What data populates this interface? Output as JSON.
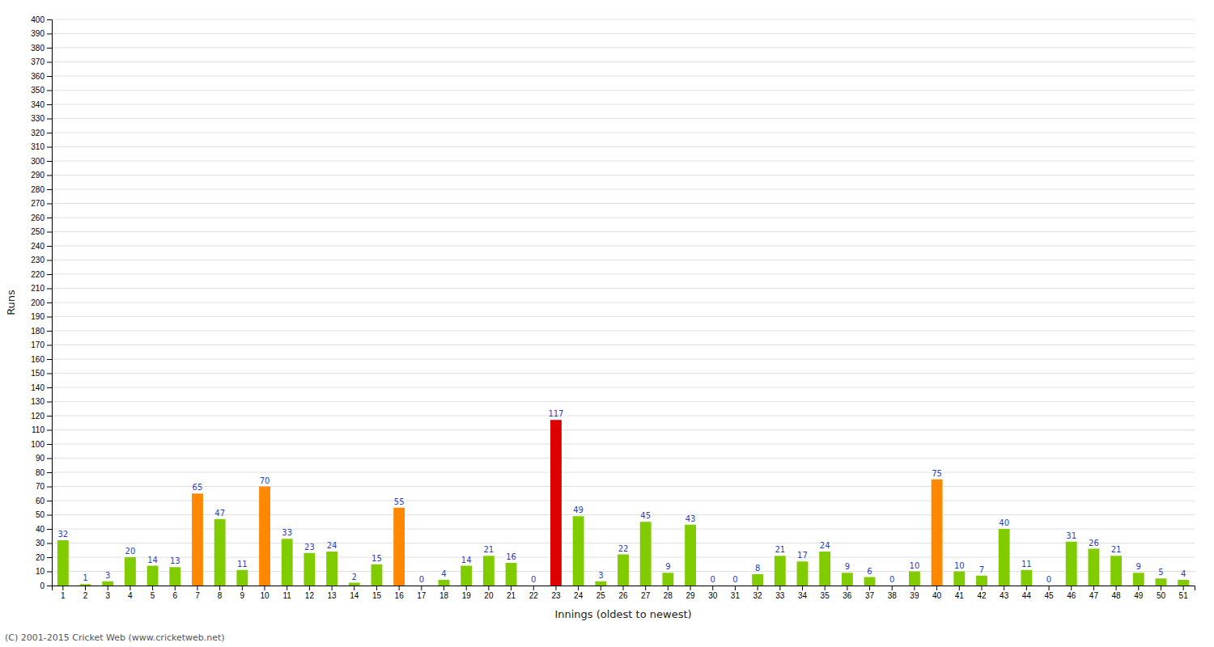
{
  "chart_data": {
    "type": "bar",
    "xlabel": "Innings (oldest to newest)",
    "ylabel": "Runs",
    "categories": [
      "1",
      "2",
      "3",
      "4",
      "5",
      "6",
      "7",
      "8",
      "9",
      "10",
      "11",
      "12",
      "13",
      "14",
      "15",
      "16",
      "17",
      "18",
      "19",
      "20",
      "21",
      "22",
      "23",
      "24",
      "25",
      "26",
      "27",
      "28",
      "29",
      "30",
      "31",
      "32",
      "33",
      "34",
      "35",
      "36",
      "37",
      "38",
      "39",
      "40",
      "41",
      "42",
      "43",
      "44",
      "45",
      "46",
      "47",
      "48",
      "49",
      "50",
      "51"
    ],
    "values": [
      32,
      1,
      3,
      20,
      14,
      13,
      65,
      47,
      11,
      70,
      33,
      23,
      24,
      2,
      15,
      55,
      0,
      4,
      14,
      21,
      16,
      0,
      117,
      49,
      3,
      22,
      45,
      9,
      43,
      0,
      0,
      8,
      21,
      17,
      24,
      9,
      6,
      0,
      10,
      75,
      10,
      7,
      40,
      11,
      0,
      31,
      26,
      21,
      9,
      5,
      4
    ],
    "colors": [
      "#80cc00",
      "#80cc00",
      "#80cc00",
      "#80cc00",
      "#80cc00",
      "#80cc00",
      "#ff8800",
      "#80cc00",
      "#80cc00",
      "#ff8800",
      "#80cc00",
      "#80cc00",
      "#80cc00",
      "#80cc00",
      "#80cc00",
      "#ff8800",
      "#80cc00",
      "#80cc00",
      "#80cc00",
      "#80cc00",
      "#80cc00",
      "#80cc00",
      "#dd0000",
      "#80cc00",
      "#80cc00",
      "#80cc00",
      "#80cc00",
      "#80cc00",
      "#80cc00",
      "#80cc00",
      "#80cc00",
      "#80cc00",
      "#80cc00",
      "#80cc00",
      "#80cc00",
      "#80cc00",
      "#80cc00",
      "#80cc00",
      "#80cc00",
      "#ff8800",
      "#80cc00",
      "#80cc00",
      "#80cc00",
      "#80cc00",
      "#80cc00",
      "#80cc00",
      "#80cc00",
      "#80cc00",
      "#80cc00",
      "#80cc00",
      "#80cc00"
    ],
    "ylim": [
      0,
      400
    ],
    "yticks": [
      0,
      10,
      20,
      30,
      40,
      50,
      60,
      70,
      80,
      90,
      100,
      110,
      120,
      130,
      140,
      150,
      160,
      170,
      180,
      190,
      200,
      210,
      220,
      230,
      240,
      250,
      260,
      270,
      280,
      290,
      300,
      310,
      320,
      330,
      340,
      350,
      360,
      370,
      380,
      390,
      400
    ],
    "grid": true,
    "data_labels": true,
    "annotations": [
      "(C) 2001-2015 Cricket Web (www.cricketweb.net)"
    ]
  }
}
